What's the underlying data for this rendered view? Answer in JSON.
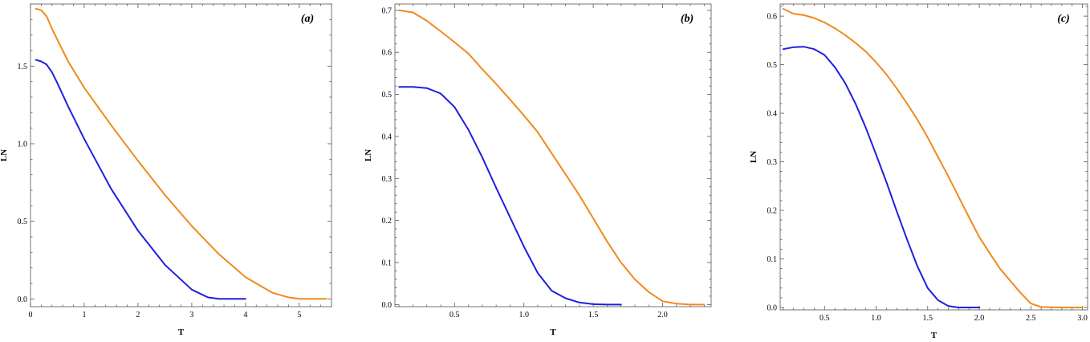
{
  "chart_data": [
    {
      "type": "line",
      "title": "",
      "panel_label": "(a)",
      "xlabel": "T",
      "ylabel": "LN",
      "xlim": [
        0,
        5.6
      ],
      "ylim": [
        -0.05,
        1.9
      ],
      "xticks": [
        0,
        1,
        2,
        3,
        4,
        5
      ],
      "xtick_labels": [
        "0",
        "1",
        "2",
        "3",
        "4",
        "5"
      ],
      "yticks": [
        0.0,
        0.5,
        1.0,
        1.5
      ],
      "ytick_labels": [
        "0.0",
        "0.5",
        "1.0",
        "1.5"
      ],
      "grid": false,
      "series": [
        {
          "color": "#f08a1c",
          "x": [
            0.1,
            0.2,
            0.3,
            0.4,
            0.5,
            0.7,
            1.0,
            1.5,
            2.0,
            2.5,
            3.0,
            3.5,
            4.0,
            4.5,
            4.8,
            5.0,
            5.2,
            5.5
          ],
          "y": [
            1.87,
            1.86,
            1.82,
            1.74,
            1.67,
            1.53,
            1.36,
            1.12,
            0.89,
            0.67,
            0.47,
            0.29,
            0.14,
            0.04,
            0.01,
            0.0,
            0.0,
            0.0
          ]
        },
        {
          "color": "#1f1fe0",
          "x": [
            0.1,
            0.2,
            0.3,
            0.4,
            0.5,
            0.7,
            1.0,
            1.5,
            2.0,
            2.5,
            3.0,
            3.3,
            3.5,
            3.6,
            3.7,
            4.0
          ],
          "y": [
            1.54,
            1.53,
            1.51,
            1.46,
            1.39,
            1.24,
            1.03,
            0.71,
            0.44,
            0.22,
            0.06,
            0.01,
            0.0,
            0.0,
            0.0,
            0.0
          ]
        }
      ]
    },
    {
      "type": "line",
      "title": "",
      "panel_label": "(b)",
      "xlabel": "T",
      "ylabel": "LN",
      "xlim": [
        0.07,
        2.35
      ],
      "ylim": [
        -0.005,
        0.715
      ],
      "xticks": [
        0.5,
        1.0,
        1.5,
        2.0
      ],
      "xtick_labels": [
        "0.5",
        "1.0",
        "1.5",
        "2.0"
      ],
      "yticks": [
        0.0,
        0.1,
        0.2,
        0.3,
        0.4,
        0.5,
        0.6,
        0.7
      ],
      "ytick_labels": [
        "0.0",
        "0.1",
        "0.2",
        "0.3",
        "0.4",
        "0.5",
        "0.6",
        "0.7"
      ],
      "grid": false,
      "series": [
        {
          "color": "#f08a1c",
          "x": [
            0.1,
            0.2,
            0.3,
            0.4,
            0.5,
            0.6,
            0.7,
            0.8,
            0.9,
            1.0,
            1.1,
            1.2,
            1.3,
            1.4,
            1.5,
            1.6,
            1.7,
            1.8,
            1.9,
            2.0,
            2.1,
            2.2,
            2.3
          ],
          "y": [
            0.7,
            0.695,
            0.675,
            0.65,
            0.624,
            0.597,
            0.56,
            0.525,
            0.488,
            0.45,
            0.41,
            0.36,
            0.31,
            0.26,
            0.205,
            0.15,
            0.1,
            0.06,
            0.03,
            0.008,
            0.002,
            0.0,
            0.0
          ]
        },
        {
          "color": "#1f1fe0",
          "x": [
            0.1,
            0.2,
            0.3,
            0.4,
            0.5,
            0.6,
            0.7,
            0.8,
            0.9,
            1.0,
            1.1,
            1.2,
            1.3,
            1.4,
            1.5,
            1.6,
            1.7
          ],
          "y": [
            0.518,
            0.518,
            0.515,
            0.502,
            0.47,
            0.416,
            0.35,
            0.278,
            0.208,
            0.138,
            0.075,
            0.033,
            0.015,
            0.005,
            0.001,
            0.0,
            0.0
          ]
        }
      ]
    },
    {
      "type": "line",
      "title": "",
      "panel_label": "(c)",
      "xlabel": "T",
      "ylabel": "LN",
      "xlim": [
        0.07,
        3.05
      ],
      "ylim": [
        -0.005,
        0.625
      ],
      "xticks": [
        0.5,
        1.0,
        1.5,
        2.0,
        2.5,
        3.0
      ],
      "xtick_labels": [
        "0.5",
        "1.0",
        "1.5",
        "2.0",
        "2.5",
        "3.0"
      ],
      "yticks": [
        0.0,
        0.1,
        0.2,
        0.3,
        0.4,
        0.5,
        0.6
      ],
      "ytick_labels": [
        "0.0",
        "0.1",
        "0.2",
        "0.3",
        "0.4",
        "0.5",
        "0.6"
      ],
      "grid": false,
      "series": [
        {
          "color": "#f08a1c",
          "x": [
            0.1,
            0.2,
            0.3,
            0.4,
            0.5,
            0.6,
            0.7,
            0.8,
            0.9,
            1.0,
            1.1,
            1.2,
            1.3,
            1.4,
            1.5,
            1.6,
            1.7,
            1.8,
            1.9,
            2.0,
            2.1,
            2.2,
            2.3,
            2.4,
            2.5,
            2.6,
            2.8,
            3.0
          ],
          "y": [
            0.615,
            0.605,
            0.602,
            0.596,
            0.587,
            0.575,
            0.561,
            0.545,
            0.527,
            0.505,
            0.48,
            0.451,
            0.42,
            0.387,
            0.35,
            0.31,
            0.27,
            0.228,
            0.186,
            0.145,
            0.112,
            0.08,
            0.055,
            0.03,
            0.008,
            0.001,
            0.0,
            0.0
          ]
        },
        {
          "color": "#1f1fe0",
          "x": [
            0.1,
            0.2,
            0.3,
            0.4,
            0.5,
            0.6,
            0.7,
            0.8,
            0.9,
            1.0,
            1.1,
            1.2,
            1.3,
            1.4,
            1.5,
            1.6,
            1.7,
            1.8,
            2.0
          ],
          "y": [
            0.532,
            0.536,
            0.537,
            0.532,
            0.52,
            0.495,
            0.462,
            0.42,
            0.37,
            0.315,
            0.258,
            0.198,
            0.14,
            0.085,
            0.04,
            0.015,
            0.003,
            0.0,
            0.0
          ]
        }
      ]
    }
  ]
}
